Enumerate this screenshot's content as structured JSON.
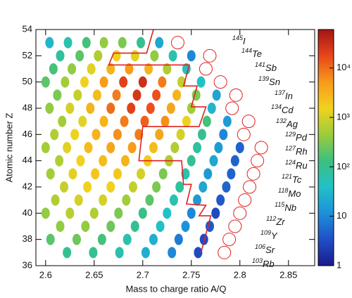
{
  "chart_data": {
    "type": "heatmap",
    "x_label": "Mass to charge ratio A/Q",
    "y_label": "Atomic number Z",
    "xlim": [
      2.59,
      2.877
    ],
    "xticks": [
      2.6,
      2.65,
      2.7,
      2.75,
      2.8,
      2.85
    ],
    "ylim": [
      36,
      54
    ],
    "yticks": [
      36,
      38,
      40,
      42,
      44,
      46,
      48,
      50,
      52,
      54
    ],
    "zlim": [
      1,
      60000
    ],
    "zscale": "log",
    "zticks": [
      1,
      10,
      {
        "value": 100,
        "label": "10²"
      },
      {
        "value": 1000,
        "label": "10³"
      },
      {
        "value": 10000,
        "label": "10⁴"
      }
    ],
    "colorscale": [
      "#1b1a8c",
      "#1f4fc8",
      "#1e90d8",
      "#22c1c7",
      "#3cc080",
      "#9ccc3a",
      "#f2d21e",
      "#f79a1b",
      "#e8461b",
      "#a31515"
    ],
    "rows": [
      {
        "z": 53,
        "x": [
          2.604,
          2.623,
          2.642,
          2.66,
          2.679,
          2.698,
          2.717
        ],
        "counts": [
          30,
          60,
          150,
          400,
          300,
          100,
          20
        ]
      },
      {
        "z": 52,
        "x": [
          2.615,
          2.635,
          2.654,
          2.673,
          2.692,
          2.712,
          2.731,
          2.75
        ],
        "counts": [
          80,
          200,
          600,
          1500,
          1200,
          400,
          60,
          10
        ]
      },
      {
        "z": 51,
        "x": [
          2.608,
          2.627,
          2.647,
          2.667,
          2.686,
          2.706,
          2.725,
          2.745
        ],
        "counts": [
          150,
          400,
          1200,
          3000,
          5000,
          3000,
          600,
          50
        ]
      },
      {
        "z": 50,
        "x": [
          2.6,
          2.62,
          2.64,
          2.66,
          2.68,
          2.7,
          2.72,
          2.74,
          2.76
        ],
        "counts": [
          200,
          500,
          1500,
          5000,
          20000,
          30000,
          8000,
          800,
          40
        ]
      },
      {
        "z": 49,
        "x": [
          2.612,
          2.633,
          2.653,
          2.673,
          2.694,
          2.714,
          2.735,
          2.755,
          2.776
        ],
        "counts": [
          300,
          800,
          2500,
          8000,
          25000,
          15000,
          3000,
          300,
          20
        ]
      },
      {
        "z": 48,
        "x": [
          2.604,
          2.625,
          2.646,
          2.667,
          2.688,
          2.708,
          2.729,
          2.75,
          2.771
        ],
        "counts": [
          400,
          1000,
          3000,
          10000,
          20000,
          15000,
          4000,
          500,
          30
        ]
      },
      {
        "z": 47,
        "x": [
          2.617,
          2.638,
          2.66,
          2.681,
          2.702,
          2.723,
          2.745,
          2.766,
          2.787
        ],
        "counts": [
          500,
          1200,
          3000,
          8000,
          12000,
          6000,
          1500,
          150,
          15
        ]
      },
      {
        "z": 46,
        "x": [
          2.609,
          2.63,
          2.652,
          2.674,
          2.696,
          2.717,
          2.739,
          2.761,
          2.783
        ],
        "counts": [
          600,
          1500,
          3000,
          6000,
          8000,
          4000,
          1000,
          100,
          10
        ]
      },
      {
        "z": 45,
        "x": [
          2.6,
          2.622,
          2.644,
          2.667,
          2.689,
          2.711,
          2.733,
          2.756,
          2.778,
          2.8
        ],
        "counts": [
          500,
          1200,
          2500,
          4000,
          5000,
          2500,
          600,
          80,
          15,
          5
        ]
      },
      {
        "z": 44,
        "x": [
          2.614,
          2.636,
          2.659,
          2.682,
          2.705,
          2.727,
          2.75,
          2.773,
          2.795
        ],
        "counts": [
          600,
          1500,
          2500,
          3000,
          1800,
          600,
          100,
          20,
          5
        ]
      },
      {
        "z": 43,
        "x": [
          2.605,
          2.628,
          2.651,
          2.674,
          2.698,
          2.721,
          2.744,
          2.767,
          2.791
        ],
        "counts": [
          500,
          1200,
          2000,
          2000,
          1000,
          300,
          60,
          15,
          5
        ]
      },
      {
        "z": 42,
        "x": [
          2.619,
          2.643,
          2.667,
          2.69,
          2.714,
          2.738,
          2.762,
          2.786
        ],
        "counts": [
          800,
          1500,
          1500,
          800,
          300,
          80,
          20,
          5
        ]
      },
      {
        "z": 41,
        "x": [
          2.61,
          2.634,
          2.659,
          2.683,
          2.707,
          2.732,
          2.756,
          2.78
        ],
        "counts": [
          600,
          1000,
          1000,
          500,
          200,
          60,
          15,
          4
        ]
      },
      {
        "z": 40,
        "x": [
          2.6,
          2.625,
          2.65,
          2.675,
          2.7,
          2.725,
          2.75,
          2.775
        ],
        "counts": [
          400,
          700,
          600,
          300,
          120,
          40,
          10,
          3
        ]
      },
      {
        "z": 39,
        "x": [
          2.615,
          2.641,
          2.667,
          2.692,
          2.718,
          2.744,
          2.769
        ],
        "counts": [
          400,
          400,
          250,
          100,
          40,
          12,
          4
        ]
      },
      {
        "z": 38,
        "x": [
          2.605,
          2.632,
          2.658,
          2.684,
          2.711,
          2.737,
          2.763
        ],
        "counts": [
          200,
          250,
          150,
          60,
          25,
          8,
          3
        ]
      },
      {
        "z": 37,
        "x": [
          2.622,
          2.649,
          2.676,
          2.703,
          2.73,
          2.757
        ],
        "counts": [
          100,
          100,
          60,
          25,
          10,
          3
        ]
      }
    ],
    "circles": [
      {
        "x": 2.736,
        "z": 53
      },
      {
        "x": 2.769,
        "z": 52
      },
      {
        "x": 2.765,
        "z": 51
      },
      {
        "x": 2.78,
        "z": 50
      },
      {
        "x": 2.796,
        "z": 49
      },
      {
        "x": 2.792,
        "z": 48
      },
      {
        "x": 2.809,
        "z": 47
      },
      {
        "x": 2.804,
        "z": 46
      },
      {
        "x": 2.822,
        "z": 45
      },
      {
        "x": 2.818,
        "z": 44
      },
      {
        "x": 2.814,
        "z": 43
      },
      {
        "x": 2.81,
        "z": 42
      },
      {
        "x": 2.805,
        "z": 41
      },
      {
        "x": 2.8,
        "z": 40
      },
      {
        "x": 2.795,
        "z": 39
      },
      {
        "x": 2.789,
        "z": 38
      },
      {
        "x": 2.784,
        "z": 37
      }
    ],
    "boundary": {
      "x": [
        2.711,
        2.704,
        2.67,
        2.665,
        2.748,
        2.742,
        2.756,
        2.75,
        2.765,
        2.758,
        2.7,
        2.696,
        2.74,
        2.742,
        2.75,
        2.745,
        2.765,
        2.758,
        2.77,
        2.76
      ],
      "z": [
        54,
        52.2,
        52.2,
        51.3,
        51.3,
        49.7,
        49.7,
        48.1,
        48.1,
        46.6,
        46.6,
        44.0,
        44.0,
        42.2,
        42.2,
        40.7,
        40.6,
        39.8,
        39.8,
        37.0
      ]
    },
    "isotopes": [
      {
        "mass": "145",
        "symbol": "I"
      },
      {
        "mass": "144",
        "symbol": "Te"
      },
      {
        "mass": "141",
        "symbol": "Sb"
      },
      {
        "mass": "139",
        "symbol": "Sn"
      },
      {
        "mass": "137",
        "symbol": "In"
      },
      {
        "mass": "134",
        "symbol": "Cd"
      },
      {
        "mass": "132",
        "symbol": "Ag"
      },
      {
        "mass": "129",
        "symbol": "Pd"
      },
      {
        "mass": "127",
        "symbol": "Rh"
      },
      {
        "mass": "124",
        "symbol": "Ru"
      },
      {
        "mass": "121",
        "symbol": "Tc"
      },
      {
        "mass": "118",
        "symbol": "Mo"
      },
      {
        "mass": "115",
        "symbol": "Nb"
      },
      {
        "mass": "112",
        "symbol": "Zr"
      },
      {
        "mass": "109",
        "symbol": "Y"
      },
      {
        "mass": "106",
        "symbol": "Sr"
      },
      {
        "mass": "103",
        "symbol": "Rb"
      }
    ]
  }
}
